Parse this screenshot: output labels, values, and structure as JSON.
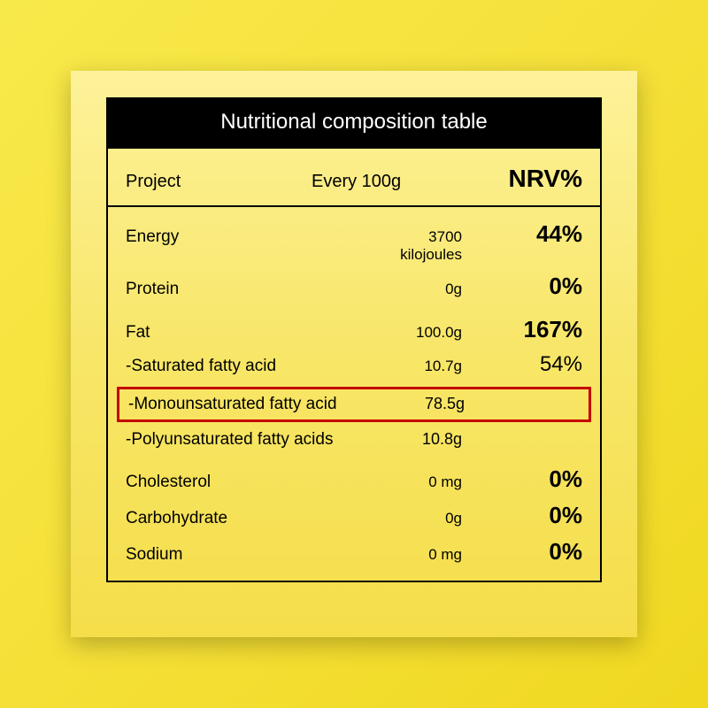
{
  "title": "Nutritional composition table",
  "columns": {
    "c1": "Project",
    "c2": "Every 100g",
    "c3": "NRV%"
  },
  "rows": {
    "energy": {
      "label": "Energy",
      "value": "3700 kilojoules",
      "pct": "44%"
    },
    "protein": {
      "label": "Protein",
      "value": "0g",
      "pct": "0%"
    },
    "fat": {
      "label": "Fat",
      "value": "100.0g",
      "pct": "167%"
    },
    "sat": {
      "label": "-Saturated fatty acid",
      "value": "10.7g",
      "pct": "54%"
    },
    "mono": {
      "label": "-Monounsaturated fatty acid",
      "value": "78.5g",
      "pct": ""
    },
    "poly": {
      "label": "-Polyunsaturated fatty acids",
      "value": "10.8g",
      "pct": ""
    },
    "chol": {
      "label": "Cholesterol",
      "value": "0 mg",
      "pct": "0%"
    },
    "carb": {
      "label": "Carbohydrate",
      "value": "0g",
      "pct": "0%"
    },
    "sodium": {
      "label": "Sodium",
      "value": "0 mg",
      "pct": "0%"
    }
  },
  "style": {
    "highlight_border": "#c40000",
    "title_bg": "#000000",
    "title_color": "#ffffff",
    "panel_gradient_top": "#fdf29a",
    "panel_gradient_bottom": "#f5de4a",
    "bg_gradient_top": "#f8e94a",
    "bg_gradient_bottom": "#f0d820",
    "title_fontsize": 24,
    "header_fontsize": 20,
    "nrv_header_fontsize": 28,
    "label_fontsize": 19,
    "value_fontsize": 17,
    "pct_fontsize": 26,
    "border_color": "#000000"
  }
}
